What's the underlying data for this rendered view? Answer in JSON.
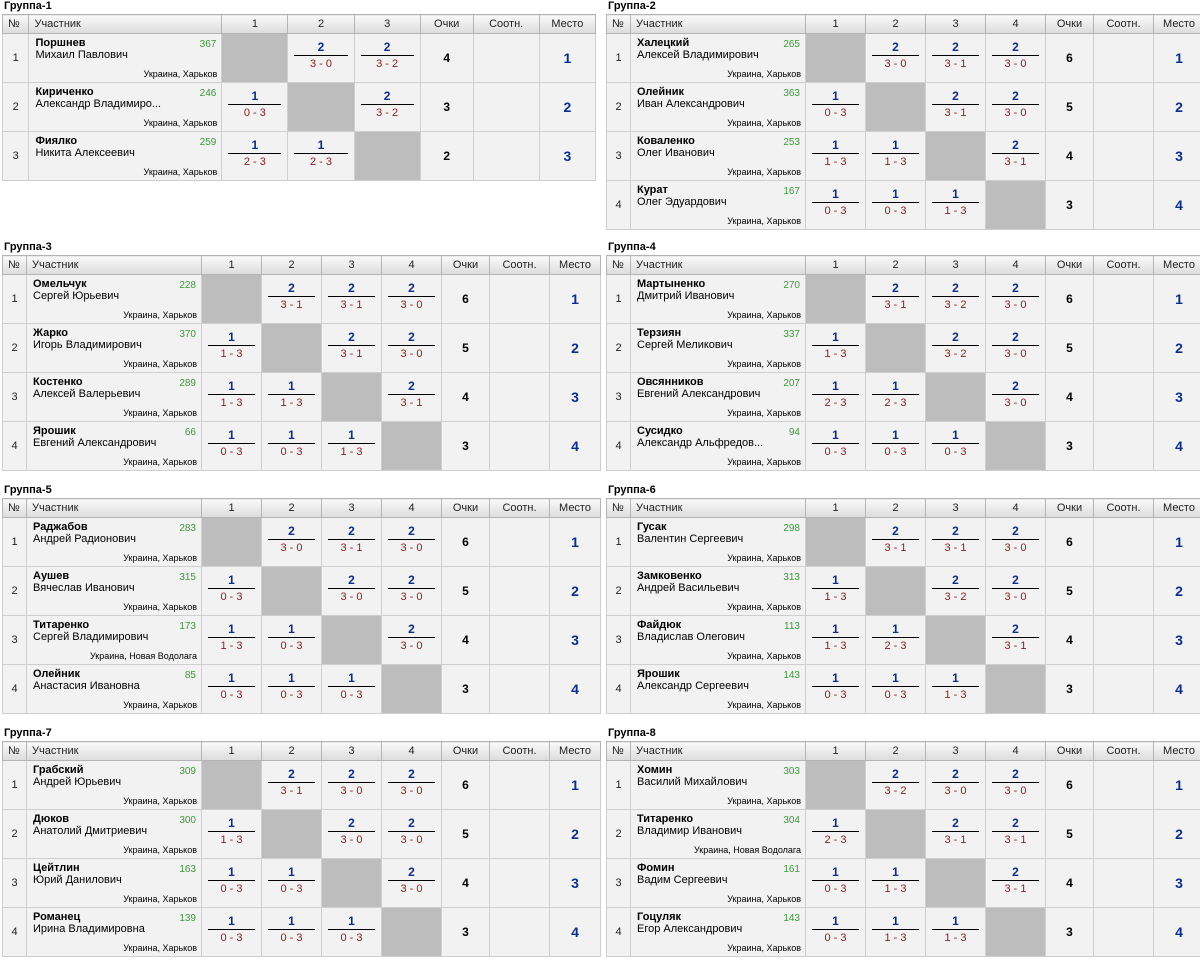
{
  "headers": {
    "no": "№",
    "player": "Участник",
    "points": "Очки",
    "ratio": "Соотн.",
    "place": "Место"
  },
  "groups": [
    {
      "title": "Группа-1",
      "players": [
        {
          "no": "1",
          "surname": "Поршнев",
          "name": "Михаил Павлович",
          "rating": "367",
          "location": "Украина, Харьков",
          "results": [
            null,
            {
              "w": "2",
              "s": "3 - 0"
            },
            {
              "w": "2",
              "s": "3 - 2"
            }
          ],
          "points": "4",
          "ratio": "",
          "place": "1"
        },
        {
          "no": "2",
          "surname": "Кириченко",
          "name": "Александр Владимиро...",
          "rating": "246",
          "location": "Украина, Харьков",
          "results": [
            {
              "w": "1",
              "s": "0 - 3"
            },
            null,
            {
              "w": "2",
              "s": "3 - 2"
            }
          ],
          "points": "3",
          "ratio": "",
          "place": "2"
        },
        {
          "no": "3",
          "surname": "Фиялко",
          "name": "Никита Алексеевич",
          "rating": "259",
          "location": "Украина, Харьков",
          "results": [
            {
              "w": "1",
              "s": "2 - 3"
            },
            {
              "w": "1",
              "s": "2 - 3"
            },
            null
          ],
          "points": "2",
          "ratio": "",
          "place": "3"
        }
      ]
    },
    {
      "title": "Группа-2",
      "players": [
        {
          "no": "1",
          "surname": "Халецкий",
          "name": "Алексей Владимирович",
          "rating": "265",
          "location": "Украина, Харьков",
          "results": [
            null,
            {
              "w": "2",
              "s": "3 - 0"
            },
            {
              "w": "2",
              "s": "3 - 1"
            },
            {
              "w": "2",
              "s": "3 - 0"
            }
          ],
          "points": "6",
          "ratio": "",
          "place": "1"
        },
        {
          "no": "2",
          "surname": "Олейник",
          "name": "Иван Александрович",
          "rating": "363",
          "location": "Украина, Харьков",
          "results": [
            {
              "w": "1",
              "s": "0 - 3"
            },
            null,
            {
              "w": "2",
              "s": "3 - 1"
            },
            {
              "w": "2",
              "s": "3 - 0"
            }
          ],
          "points": "5",
          "ratio": "",
          "place": "2"
        },
        {
          "no": "3",
          "surname": "Коваленко",
          "name": "Олег Иванович",
          "rating": "253",
          "location": "Украина, Харьков",
          "results": [
            {
              "w": "1",
              "s": "1 - 3"
            },
            {
              "w": "1",
              "s": "1 - 3"
            },
            null,
            {
              "w": "2",
              "s": "3 - 1"
            }
          ],
          "points": "4",
          "ratio": "",
          "place": "3"
        },
        {
          "no": "4",
          "surname": "Курат",
          "name": "Олег Эдуардович",
          "rating": "167",
          "location": "Украина, Харьков",
          "results": [
            {
              "w": "1",
              "s": "0 - 3"
            },
            {
              "w": "1",
              "s": "0 - 3"
            },
            {
              "w": "1",
              "s": "1 - 3"
            },
            null
          ],
          "points": "3",
          "ratio": "",
          "place": "4"
        }
      ]
    },
    {
      "title": "Группа-3",
      "players": [
        {
          "no": "1",
          "surname": "Омельчук",
          "name": "Сергей Юрьевич",
          "rating": "228",
          "location": "Украина, Харьков",
          "results": [
            null,
            {
              "w": "2",
              "s": "3 - 1"
            },
            {
              "w": "2",
              "s": "3 - 1"
            },
            {
              "w": "2",
              "s": "3 - 0"
            }
          ],
          "points": "6",
          "ratio": "",
          "place": "1"
        },
        {
          "no": "2",
          "surname": "Жарко",
          "name": "Игорь Владимирович",
          "rating": "370",
          "location": "Украина, Харьков",
          "results": [
            {
              "w": "1",
              "s": "1 - 3"
            },
            null,
            {
              "w": "2",
              "s": "3 - 1"
            },
            {
              "w": "2",
              "s": "3 - 0"
            }
          ],
          "points": "5",
          "ratio": "",
          "place": "2"
        },
        {
          "no": "3",
          "surname": "Костенко",
          "name": "Алексей Валерьевич",
          "rating": "289",
          "location": "Украина, Харьков",
          "results": [
            {
              "w": "1",
              "s": "1 - 3"
            },
            {
              "w": "1",
              "s": "1 - 3"
            },
            null,
            {
              "w": "2",
              "s": "3 - 1"
            }
          ],
          "points": "4",
          "ratio": "",
          "place": "3"
        },
        {
          "no": "4",
          "surname": "Ярошик",
          "name": "Евгений Александрович",
          "rating": "66",
          "location": "Украина, Харьков",
          "results": [
            {
              "w": "1",
              "s": "0 - 3"
            },
            {
              "w": "1",
              "s": "0 - 3"
            },
            {
              "w": "1",
              "s": "1 - 3"
            },
            null
          ],
          "points": "3",
          "ratio": "",
          "place": "4"
        }
      ]
    },
    {
      "title": "Группа-4",
      "players": [
        {
          "no": "1",
          "surname": "Мартыненко",
          "name": "Дмитрий Иванович",
          "rating": "270",
          "location": "Украина, Харьков",
          "results": [
            null,
            {
              "w": "2",
              "s": "3 - 1"
            },
            {
              "w": "2",
              "s": "3 - 2"
            },
            {
              "w": "2",
              "s": "3 - 0"
            }
          ],
          "points": "6",
          "ratio": "",
          "place": "1"
        },
        {
          "no": "2",
          "surname": "Терзиян",
          "name": "Сергей Меликович",
          "rating": "337",
          "location": "Украина, Харьков",
          "results": [
            {
              "w": "1",
              "s": "1 - 3"
            },
            null,
            {
              "w": "2",
              "s": "3 - 2"
            },
            {
              "w": "2",
              "s": "3 - 0"
            }
          ],
          "points": "5",
          "ratio": "",
          "place": "2"
        },
        {
          "no": "3",
          "surname": "Овсянников",
          "name": "Евгений Александрович",
          "rating": "207",
          "location": "Украина, Харьков",
          "results": [
            {
              "w": "1",
              "s": "2 - 3"
            },
            {
              "w": "1",
              "s": "2 - 3"
            },
            null,
            {
              "w": "2",
              "s": "3 - 0"
            }
          ],
          "points": "4",
          "ratio": "",
          "place": "3"
        },
        {
          "no": "4",
          "surname": "Сусидко",
          "name": "Александр Альфредов...",
          "rating": "94",
          "location": "Украина, Харьков",
          "results": [
            {
              "w": "1",
              "s": "0 - 3"
            },
            {
              "w": "1",
              "s": "0 - 3"
            },
            {
              "w": "1",
              "s": "0 - 3"
            },
            null
          ],
          "points": "3",
          "ratio": "",
          "place": "4"
        }
      ]
    },
    {
      "title": "Группа-5",
      "players": [
        {
          "no": "1",
          "surname": "Раджабов",
          "name": "Андрей Радионович",
          "rating": "283",
          "location": "Украина, Харьков",
          "results": [
            null,
            {
              "w": "2",
              "s": "3 - 0"
            },
            {
              "w": "2",
              "s": "3 - 1"
            },
            {
              "w": "2",
              "s": "3 - 0"
            }
          ],
          "points": "6",
          "ratio": "",
          "place": "1"
        },
        {
          "no": "2",
          "surname": "Аушев",
          "name": "Вячеслав Иванович",
          "rating": "315",
          "location": "Украина, Харьков",
          "results": [
            {
              "w": "1",
              "s": "0 - 3"
            },
            null,
            {
              "w": "2",
              "s": "3 - 0"
            },
            {
              "w": "2",
              "s": "3 - 0"
            }
          ],
          "points": "5",
          "ratio": "",
          "place": "2"
        },
        {
          "no": "3",
          "surname": "Титаренко",
          "name": "Сергей Владимирович",
          "rating": "173",
          "location": "Украина, Новая Водолага",
          "results": [
            {
              "w": "1",
              "s": "1 - 3"
            },
            {
              "w": "1",
              "s": "0 - 3"
            },
            null,
            {
              "w": "2",
              "s": "3 - 0"
            }
          ],
          "points": "4",
          "ratio": "",
          "place": "3"
        },
        {
          "no": "4",
          "surname": "Олейник",
          "name": "Анастасия Ивановна",
          "rating": "85",
          "location": "Украина, Харьков",
          "results": [
            {
              "w": "1",
              "s": "0 - 3"
            },
            {
              "w": "1",
              "s": "0 - 3"
            },
            {
              "w": "1",
              "s": "0 - 3"
            },
            null
          ],
          "points": "3",
          "ratio": "",
          "place": "4"
        }
      ]
    },
    {
      "title": "Группа-6",
      "players": [
        {
          "no": "1",
          "surname": "Гусак",
          "name": "Валентин Сергеевич",
          "rating": "298",
          "location": "Украина, Харьков",
          "results": [
            null,
            {
              "w": "2",
              "s": "3 - 1"
            },
            {
              "w": "2",
              "s": "3 - 1"
            },
            {
              "w": "2",
              "s": "3 - 0"
            }
          ],
          "points": "6",
          "ratio": "",
          "place": "1"
        },
        {
          "no": "2",
          "surname": "Замковенко",
          "name": "Андрей Васильевич",
          "rating": "313",
          "location": "Украина, Харьков",
          "results": [
            {
              "w": "1",
              "s": "1 - 3"
            },
            null,
            {
              "w": "2",
              "s": "3 - 2"
            },
            {
              "w": "2",
              "s": "3 - 0"
            }
          ],
          "points": "5",
          "ratio": "",
          "place": "2"
        },
        {
          "no": "3",
          "surname": "Файдюк",
          "name": "Владислав Олегович",
          "rating": "113",
          "location": "Украина, Харьков",
          "results": [
            {
              "w": "1",
              "s": "1 - 3"
            },
            {
              "w": "1",
              "s": "2 - 3"
            },
            null,
            {
              "w": "2",
              "s": "3 - 1"
            }
          ],
          "points": "4",
          "ratio": "",
          "place": "3"
        },
        {
          "no": "4",
          "surname": "Ярошик",
          "name": "Александр Сергеевич",
          "rating": "143",
          "location": "Украина, Харьков",
          "results": [
            {
              "w": "1",
              "s": "0 - 3"
            },
            {
              "w": "1",
              "s": "0 - 3"
            },
            {
              "w": "1",
              "s": "1 - 3"
            },
            null
          ],
          "points": "3",
          "ratio": "",
          "place": "4"
        }
      ]
    },
    {
      "title": "Группа-7",
      "players": [
        {
          "no": "1",
          "surname": "Грабский",
          "name": "Андрей Юрьевич",
          "rating": "309",
          "location": "Украина, Харьков",
          "results": [
            null,
            {
              "w": "2",
              "s": "3 - 1"
            },
            {
              "w": "2",
              "s": "3 - 0"
            },
            {
              "w": "2",
              "s": "3 - 0"
            }
          ],
          "points": "6",
          "ratio": "",
          "place": "1"
        },
        {
          "no": "2",
          "surname": "Дюков",
          "name": "Анатолий Дмитриевич",
          "rating": "300",
          "location": "Украина, Харьков",
          "results": [
            {
              "w": "1",
              "s": "1 - 3"
            },
            null,
            {
              "w": "2",
              "s": "3 - 0"
            },
            {
              "w": "2",
              "s": "3 - 0"
            }
          ],
          "points": "5",
          "ratio": "",
          "place": "2"
        },
        {
          "no": "3",
          "surname": "Цейтлин",
          "name": "Юрий Данилович",
          "rating": "163",
          "location": "Украина, Харьков",
          "results": [
            {
              "w": "1",
              "s": "0 - 3"
            },
            {
              "w": "1",
              "s": "0 - 3"
            },
            null,
            {
              "w": "2",
              "s": "3 - 0"
            }
          ],
          "points": "4",
          "ratio": "",
          "place": "3"
        },
        {
          "no": "4",
          "surname": "Романец",
          "name": "Ирина Владимировна",
          "rating": "139",
          "location": "Украина, Харьков",
          "results": [
            {
              "w": "1",
              "s": "0 - 3"
            },
            {
              "w": "1",
              "s": "0 - 3"
            },
            {
              "w": "1",
              "s": "0 - 3"
            },
            null
          ],
          "points": "3",
          "ratio": "",
          "place": "4"
        }
      ]
    },
    {
      "title": "Группа-8",
      "players": [
        {
          "no": "1",
          "surname": "Хомин",
          "name": "Василий Михайлович",
          "rating": "303",
          "location": "Украина, Харьков",
          "results": [
            null,
            {
              "w": "2",
              "s": "3 - 2"
            },
            {
              "w": "2",
              "s": "3 - 0"
            },
            {
              "w": "2",
              "s": "3 - 0"
            }
          ],
          "points": "6",
          "ratio": "",
          "place": "1"
        },
        {
          "no": "2",
          "surname": "Титаренко",
          "name": "Владимир Иванович",
          "rating": "304",
          "location": "Украина, Новая Водолага",
          "results": [
            {
              "w": "1",
              "s": "2 - 3"
            },
            null,
            {
              "w": "2",
              "s": "3 - 1"
            },
            {
              "w": "2",
              "s": "3 - 1"
            }
          ],
          "points": "5",
          "ratio": "",
          "place": "2"
        },
        {
          "no": "3",
          "surname": "Фомин",
          "name": "Вадим Сергеевич",
          "rating": "161",
          "location": "Украина, Харьков",
          "results": [
            {
              "w": "1",
              "s": "0 - 3"
            },
            {
              "w": "1",
              "s": "1 - 3"
            },
            null,
            {
              "w": "2",
              "s": "3 - 1"
            }
          ],
          "points": "4",
          "ratio": "",
          "place": "3"
        },
        {
          "no": "4",
          "surname": "Гоцуляк",
          "name": "Егор Александрович",
          "rating": "143",
          "location": "Украина, Харьков",
          "results": [
            {
              "w": "1",
              "s": "0 - 3"
            },
            {
              "w": "1",
              "s": "1 - 3"
            },
            {
              "w": "1",
              "s": "1 - 3"
            },
            null
          ],
          "points": "3",
          "ratio": "",
          "place": "4"
        }
      ]
    }
  ]
}
